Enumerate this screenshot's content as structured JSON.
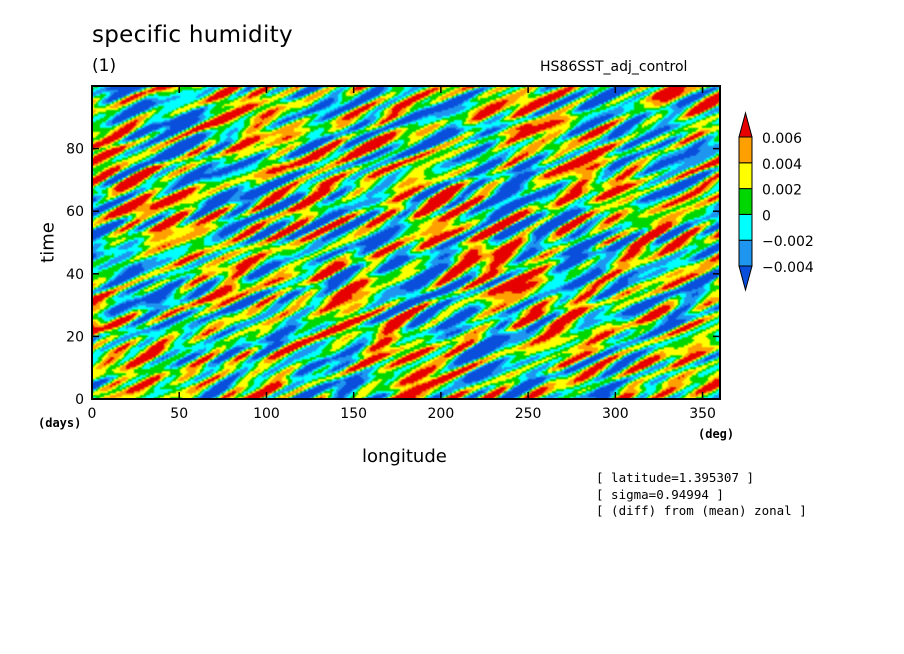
{
  "header": {
    "title": "specific humidity",
    "subtitle": "(1)",
    "experiment": "HS86SST_adj_control"
  },
  "annotations": [
    "[ latitude=1.395307 ]",
    "[ sigma=0.94994 ]",
    "[ (diff) from (mean) zonal ]"
  ],
  "chart_data": {
    "type": "heatmap",
    "title": "specific humidity",
    "subtitle": "(1)",
    "xlabel": "longitude",
    "ylabel": "time",
    "x_unit": "(deg)",
    "y_unit": "(days)",
    "xlim": [
      0,
      360
    ],
    "ylim": [
      0,
      100
    ],
    "x_ticks": [
      0,
      50,
      100,
      150,
      200,
      250,
      300,
      350
    ],
    "y_ticks": [
      0,
      20,
      40,
      60,
      80
    ],
    "colorbar": {
      "labels": [
        "0.006",
        "0.004",
        "0.002",
        "0",
        "−0.002",
        "−0.004"
      ],
      "levels": [
        -0.004,
        -0.002,
        0,
        0.002,
        0.004,
        0.006
      ],
      "colors": [
        "#0a4fdc",
        "#1e96f0",
        "#00ffff",
        "#00d700",
        "#ffff00",
        "#ffa000",
        "#e60000"
      ],
      "extend": "both"
    }
  }
}
